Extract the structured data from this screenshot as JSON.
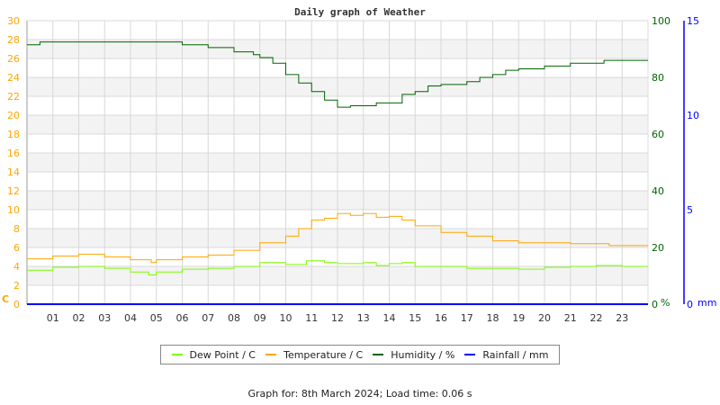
{
  "chart_data": {
    "type": "line",
    "title": "Daily graph of Weather",
    "x_ticks": [
      "01",
      "02",
      "03",
      "04",
      "05",
      "06",
      "07",
      "08",
      "09",
      "10",
      "11",
      "12",
      "13",
      "14",
      "15",
      "16",
      "17",
      "18",
      "19",
      "20",
      "21",
      "22",
      "23"
    ],
    "xlim": [
      0,
      24
    ],
    "grid": true,
    "legend_position": "bottom",
    "axes": {
      "left": {
        "label": "C",
        "ylim": [
          0,
          30
        ],
        "ticks": [
          0,
          2,
          4,
          6,
          8,
          10,
          12,
          14,
          16,
          18,
          20,
          22,
          24,
          26,
          28,
          30
        ],
        "color": "#ffa500"
      },
      "right1": {
        "label": "%",
        "ylim": [
          0,
          100
        ],
        "ticks": [
          0,
          20,
          40,
          60,
          80,
          100
        ],
        "color": "#006400"
      },
      "right2": {
        "label": "mm",
        "ylim": [
          0,
          15
        ],
        "ticks": [
          0,
          5,
          10,
          15
        ],
        "color": "#0000ff"
      }
    },
    "series": [
      {
        "name": "Dew Point / C",
        "axis": "left",
        "color": "#7cfc00",
        "x": [
          0,
          1,
          2,
          3,
          4,
          4.7,
          5,
          6,
          7,
          8,
          9,
          10,
          10.8,
          11.5,
          12,
          13,
          13.5,
          14,
          14.5,
          15,
          16,
          17,
          18,
          19,
          20,
          21,
          22,
          23,
          24
        ],
        "y": [
          3.6,
          3.9,
          4.0,
          3.8,
          3.4,
          3.1,
          3.4,
          3.7,
          3.8,
          4.0,
          4.4,
          4.2,
          4.6,
          4.4,
          4.3,
          4.4,
          4.1,
          4.3,
          4.4,
          4.0,
          4.0,
          3.8,
          3.8,
          3.7,
          3.9,
          4.0,
          4.1,
          4.0,
          4.0
        ]
      },
      {
        "name": "Temperature / C",
        "axis": "left",
        "color": "#ffa500",
        "x": [
          0,
          1,
          2,
          3,
          4,
          4.8,
          5,
          6,
          7,
          8,
          9,
          10,
          10.5,
          11,
          11.5,
          12,
          12.5,
          13,
          13.5,
          14,
          14.5,
          15,
          16,
          17,
          18,
          19,
          20,
          21,
          22,
          22.5,
          24
        ],
        "y": [
          4.8,
          5.1,
          5.3,
          5.0,
          4.7,
          4.4,
          4.7,
          5.0,
          5.2,
          5.7,
          6.5,
          7.2,
          8.0,
          8.9,
          9.1,
          9.6,
          9.4,
          9.6,
          9.2,
          9.3,
          8.9,
          8.3,
          7.6,
          7.2,
          6.7,
          6.5,
          6.5,
          6.4,
          6.4,
          6.2,
          6.2
        ]
      },
      {
        "name": "Humidity / %",
        "axis": "right1",
        "color": "#006400",
        "x": [
          0,
          0.5,
          3,
          6,
          7,
          8,
          8.75,
          9,
          9.5,
          10,
          10.5,
          11,
          11.5,
          12,
          12.5,
          13,
          13.5,
          14,
          14.5,
          15,
          15.5,
          16,
          17,
          17.5,
          18,
          18.5,
          19,
          20,
          21,
          22,
          22.3,
          24
        ],
        "y": [
          91.5,
          92.5,
          92.5,
          91.5,
          90.5,
          89,
          88,
          87,
          85,
          81,
          78,
          75,
          72,
          69.5,
          70,
          70,
          71,
          71,
          74,
          75,
          77,
          77.5,
          78.5,
          80,
          81,
          82.5,
          83,
          84,
          85,
          85,
          86,
          86
        ]
      },
      {
        "name": "Rainfall / mm",
        "axis": "right2",
        "color": "#0000ff",
        "x": [
          0,
          24
        ],
        "y": [
          0,
          0
        ]
      }
    ]
  },
  "footer": "Graph for: 8th March 2024; Load time: 0.06 s"
}
